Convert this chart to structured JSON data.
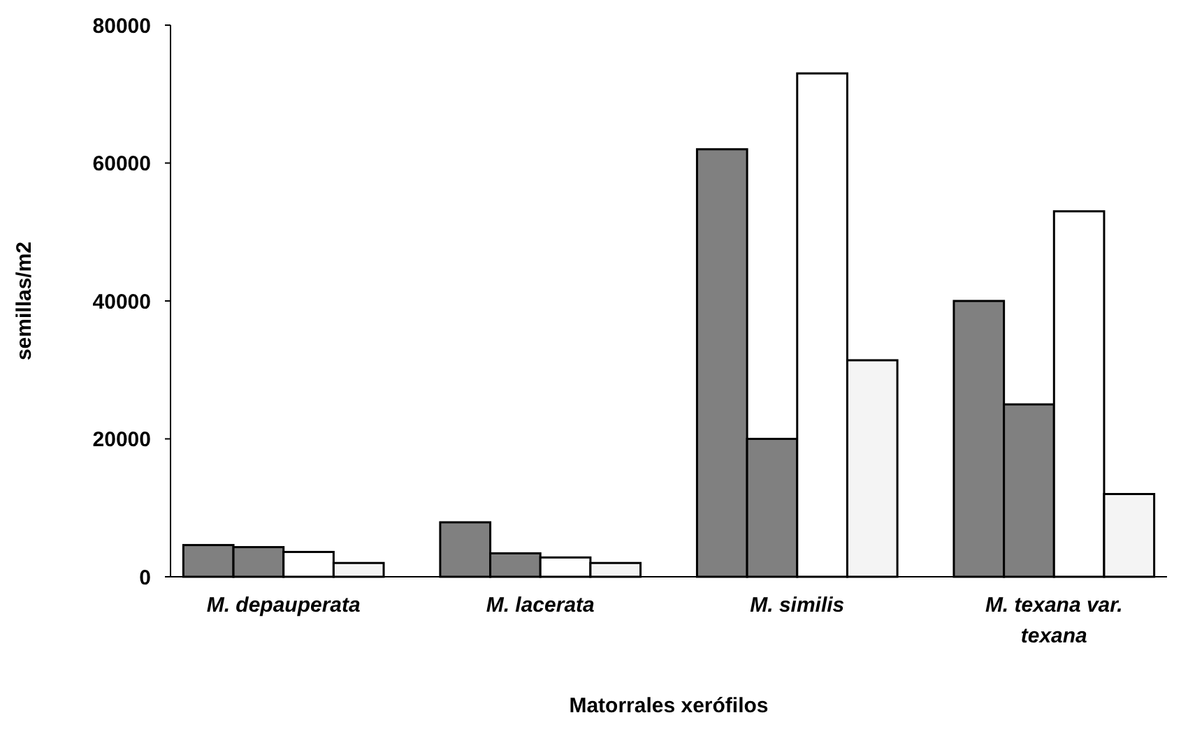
{
  "chart_data": {
    "type": "bar",
    "xlabel": "Matorrales xerófilos",
    "ylabel": "semillas/m2",
    "categories": [
      "M. depauperata",
      "M. lacerata",
      "M. similis",
      "M. texana var. texana"
    ],
    "series": [
      {
        "color": "#808080",
        "values": [
          4600,
          7900,
          62000,
          40000
        ]
      },
      {
        "color": "#808080",
        "values": [
          4300,
          3400,
          20000,
          25000
        ]
      },
      {
        "color": "#ffffff",
        "values": [
          3600,
          2800,
          73000,
          53000
        ]
      },
      {
        "color": "#f4f4f4",
        "values": [
          2000,
          2000,
          31400,
          12000
        ]
      }
    ],
    "ylim": [
      0,
      80000
    ],
    "yticks": [
      0,
      20000,
      40000,
      60000,
      80000
    ]
  }
}
